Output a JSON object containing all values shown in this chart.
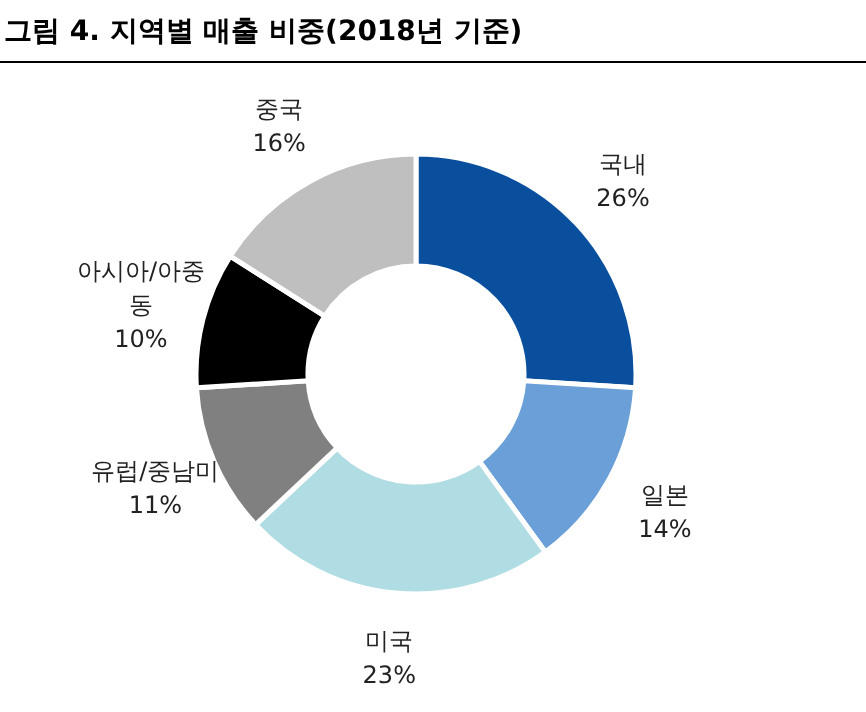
{
  "chart_data": {
    "type": "donut",
    "title": "그림 4. 지역별 매출 비중(2018년 기준)",
    "categories": [
      "국내",
      "일본",
      "미국",
      "유럽/중남미",
      "아시아/아중동",
      "중국"
    ],
    "values": [
      26,
      14,
      23,
      11,
      10,
      16
    ],
    "colors": [
      "#0a4f9e",
      "#6a9fd8",
      "#b0dde4",
      "#808080",
      "#000000",
      "#bfbfbf"
    ],
    "value_labels": [
      "26%",
      "14%",
      "23%",
      "11%",
      "10%",
      "16%"
    ]
  }
}
